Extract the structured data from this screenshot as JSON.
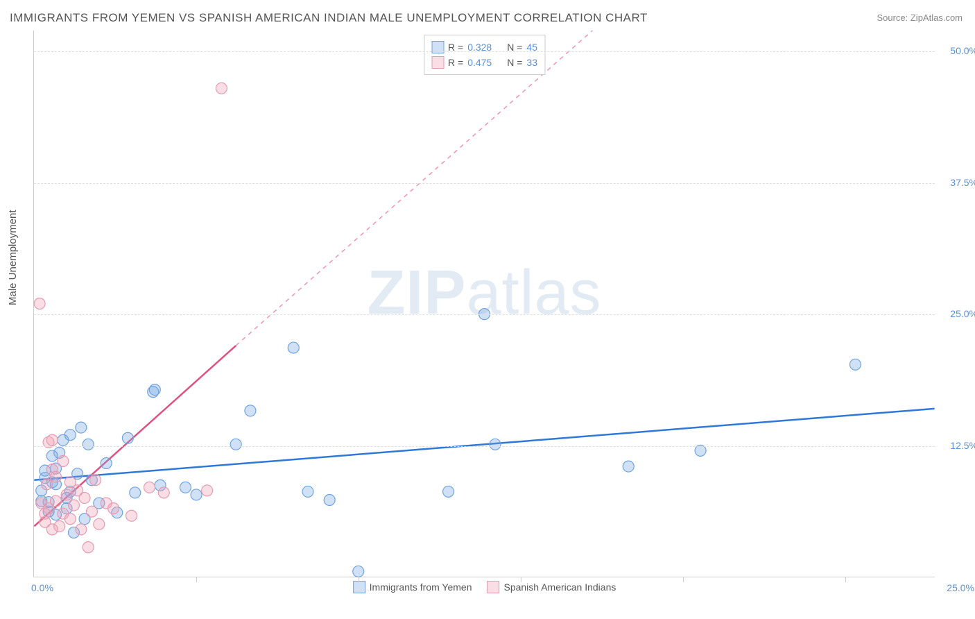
{
  "title": "IMMIGRANTS FROM YEMEN VS SPANISH AMERICAN INDIAN MALE UNEMPLOYMENT CORRELATION CHART",
  "source_label": "Source: ZipAtlas.com",
  "ylabel": "Male Unemployment",
  "watermark_zip": "ZIP",
  "watermark_atlas": "atlas",
  "chart": {
    "type": "scatter",
    "xlim": [
      0,
      25
    ],
    "ylim": [
      0,
      52
    ],
    "xtick_positions": [
      0,
      4.5,
      9,
      13.5,
      18,
      22.5,
      25
    ],
    "xtick_labels": {
      "0": "0.0%",
      "25": "25.0%"
    },
    "ytick_positions": [
      12.5,
      25.0,
      37.5,
      50.0
    ],
    "ytick_labels": [
      "12.5%",
      "25.0%",
      "37.5%",
      "50.0%"
    ],
    "background_color": "#ffffff",
    "grid_color": "#dddddd",
    "axis_color": "#cccccc",
    "tick_label_color": "#5b8fd6",
    "series": [
      {
        "name": "Immigrants from Yemen",
        "color_fill": "rgba(120,170,230,0.35)",
        "color_stroke": "#6fa3dd",
        "trend_color": "#2f78d8",
        "trend_dash": "none",
        "marker_radius": 8,
        "R": "0.328",
        "N": "45",
        "trend": {
          "x1": 0,
          "y1": 9.2,
          "x2": 25,
          "y2": 16.0
        },
        "points": [
          [
            0.2,
            8.2
          ],
          [
            0.3,
            9.4
          ],
          [
            0.4,
            7.1
          ],
          [
            0.5,
            9.0
          ],
          [
            0.6,
            10.3
          ],
          [
            0.6,
            5.9
          ],
          [
            0.7,
            11.8
          ],
          [
            0.8,
            13.0
          ],
          [
            0.9,
            7.5
          ],
          [
            1.0,
            13.5
          ],
          [
            1.1,
            4.2
          ],
          [
            1.2,
            9.8
          ],
          [
            1.3,
            14.2
          ],
          [
            1.5,
            12.6
          ],
          [
            1.8,
            7.0
          ],
          [
            2.0,
            10.8
          ],
          [
            2.3,
            6.1
          ],
          [
            2.6,
            13.2
          ],
          [
            2.8,
            8.0
          ],
          [
            3.3,
            17.6
          ],
          [
            3.35,
            17.8
          ],
          [
            3.5,
            8.7
          ],
          [
            4.2,
            8.5
          ],
          [
            4.5,
            7.8
          ],
          [
            5.6,
            12.6
          ],
          [
            6.0,
            15.8
          ],
          [
            7.2,
            21.8
          ],
          [
            7.6,
            8.1
          ],
          [
            8.2,
            7.3
          ],
          [
            9.0,
            0.5
          ],
          [
            11.5,
            8.1
          ],
          [
            12.5,
            25.0
          ],
          [
            12.8,
            12.6
          ],
          [
            16.5,
            10.5
          ],
          [
            18.5,
            12.0
          ],
          [
            22.8,
            20.2
          ],
          [
            0.4,
            6.2
          ],
          [
            0.6,
            8.8
          ],
          [
            0.9,
            6.5
          ],
          [
            1.0,
            8.1
          ],
          [
            1.4,
            5.5
          ],
          [
            0.5,
            11.5
          ],
          [
            0.3,
            10.1
          ],
          [
            1.6,
            9.2
          ],
          [
            0.2,
            7.2
          ]
        ]
      },
      {
        "name": "Spanish American Indians",
        "color_fill": "rgba(240,160,180,0.35)",
        "color_stroke": "#e59ab0",
        "trend_color": "#e05080",
        "trend_dash": "solid_then_dash",
        "marker_radius": 8,
        "R": "0.475",
        "N": "33",
        "trend": {
          "x1": 0,
          "y1": 4.8,
          "x2": 5.6,
          "y2": 22.0,
          "x3": 15.5,
          "y3": 52.0
        },
        "points": [
          [
            0.15,
            26.0
          ],
          [
            0.2,
            7.0
          ],
          [
            0.3,
            5.2
          ],
          [
            0.35,
            8.8
          ],
          [
            0.4,
            12.8
          ],
          [
            0.4,
            6.5
          ],
          [
            0.5,
            10.2
          ],
          [
            0.5,
            13.0
          ],
          [
            0.6,
            7.2
          ],
          [
            0.6,
            9.5
          ],
          [
            0.7,
            4.8
          ],
          [
            0.8,
            6.0
          ],
          [
            0.8,
            11.0
          ],
          [
            0.9,
            7.8
          ],
          [
            1.0,
            5.5
          ],
          [
            1.0,
            9.0
          ],
          [
            1.1,
            6.8
          ],
          [
            1.2,
            8.2
          ],
          [
            1.3,
            4.5
          ],
          [
            1.4,
            7.5
          ],
          [
            1.5,
            2.8
          ],
          [
            1.6,
            6.2
          ],
          [
            1.7,
            9.2
          ],
          [
            1.8,
            5.0
          ],
          [
            2.0,
            7.0
          ],
          [
            2.2,
            6.5
          ],
          [
            2.7,
            5.8
          ],
          [
            3.2,
            8.5
          ],
          [
            3.6,
            8.0
          ],
          [
            4.8,
            8.2
          ],
          [
            5.2,
            46.5
          ],
          [
            0.3,
            6.0
          ],
          [
            0.5,
            4.5
          ]
        ]
      }
    ]
  },
  "legend_top": {
    "r_label": "R =",
    "n_label": "N ="
  },
  "legend_bottom": [
    {
      "label": "Immigrants from Yemen",
      "fill": "rgba(120,170,230,0.35)",
      "stroke": "#6fa3dd"
    },
    {
      "label": "Spanish American Indians",
      "fill": "rgba(240,160,180,0.35)",
      "stroke": "#e59ab0"
    }
  ]
}
